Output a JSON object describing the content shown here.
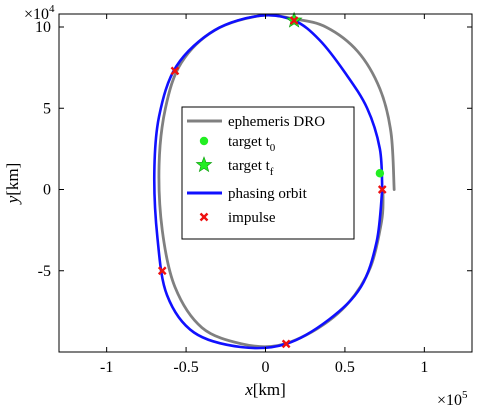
{
  "chart_data": {
    "type": "line",
    "xlabel_var": "x",
    "xlabel_unit": "[km]",
    "ylabel_var": "y",
    "ylabel_unit": "[km]",
    "xlim": [
      -130000,
      130000
    ],
    "ylim": [
      -100000,
      108000
    ],
    "x_ticks": [
      -100000,
      -50000,
      0,
      50000,
      100000
    ],
    "x_tick_labels": [
      "-1",
      "-0.5",
      "0",
      "0.5",
      "1"
    ],
    "y_ticks": [
      -50000,
      0,
      50000,
      100000
    ],
    "y_tick_labels": [
      "-5",
      "0",
      "5",
      "10"
    ],
    "x_multiplier": {
      "base": "×10",
      "exp": "5"
    },
    "y_multiplier": {
      "base": "×10",
      "exp": "4"
    },
    "grid": false,
    "legend_position": "center",
    "series": [
      {
        "name": "ephemeris DRO",
        "kind": "line",
        "color": "#808080",
        "points": [
          [
            81000,
            0
          ],
          [
            79000,
            35000
          ],
          [
            72000,
            62000
          ],
          [
            58000,
            85000
          ],
          [
            38000,
            100000
          ],
          [
            18000,
            105000
          ],
          [
            -3000,
            107000
          ],
          [
            -32000,
            98000
          ],
          [
            -53000,
            78000
          ],
          [
            -63000,
            50000
          ],
          [
            -67000,
            15000
          ],
          [
            -65000,
            -25000
          ],
          [
            -57000,
            -60000
          ],
          [
            -40000,
            -85000
          ],
          [
            -15000,
            -95000
          ],
          [
            8000,
            -96000
          ],
          [
            32000,
            -86000
          ],
          [
            52000,
            -70000
          ],
          [
            66000,
            -48000
          ],
          [
            73000,
            -20000
          ],
          [
            74000,
            -5000
          ],
          [
            73500,
            0
          ]
        ]
      },
      {
        "name": "phasing orbit",
        "kind": "line",
        "color": "#1010ff",
        "points": [
          [
            73500,
            0
          ],
          [
            72000,
            25000
          ],
          [
            64000,
            50000
          ],
          [
            50000,
            72000
          ],
          [
            34000,
            92000
          ],
          [
            18000,
            104000
          ],
          [
            -3000,
            107000
          ],
          [
            -32000,
            98000
          ],
          [
            -56000,
            76000
          ],
          [
            -67000,
            45000
          ],
          [
            -70000,
            10000
          ],
          [
            -68000,
            -30000
          ],
          [
            -62000,
            -65000
          ],
          [
            -45000,
            -88000
          ],
          [
            -15000,
            -97000
          ],
          [
            13000,
            -95000
          ],
          [
            40000,
            -80000
          ],
          [
            60000,
            -60000
          ],
          [
            70000,
            -32000
          ],
          [
            73500,
            0
          ]
        ]
      },
      {
        "name": "target t0",
        "kind": "marker-dot",
        "color": "#22ee22",
        "points": [
          [
            72000,
            10000
          ]
        ]
      },
      {
        "name": "target tf",
        "kind": "marker-star",
        "color": "#22ee22",
        "points": [
          [
            18000,
            104000
          ]
        ]
      },
      {
        "name": "impulse",
        "kind": "marker-x",
        "color": "#ee1111",
        "points": [
          [
            73500,
            0
          ],
          [
            18000,
            104000
          ],
          [
            -57000,
            73000
          ],
          [
            -65000,
            -50000
          ],
          [
            13000,
            -95000
          ]
        ]
      }
    ],
    "legend": [
      {
        "series": "ephemeris DRO",
        "text": "ephemeris DRO",
        "sub": ""
      },
      {
        "series": "target t0",
        "text": "target t",
        "sub": "0"
      },
      {
        "series": "target tf",
        "text": "target t",
        "sub": "f"
      },
      {
        "series": "phasing orbit",
        "text": "phasing orbit",
        "sub": ""
      },
      {
        "series": "impulse",
        "text": "impulse",
        "sub": ""
      }
    ]
  }
}
